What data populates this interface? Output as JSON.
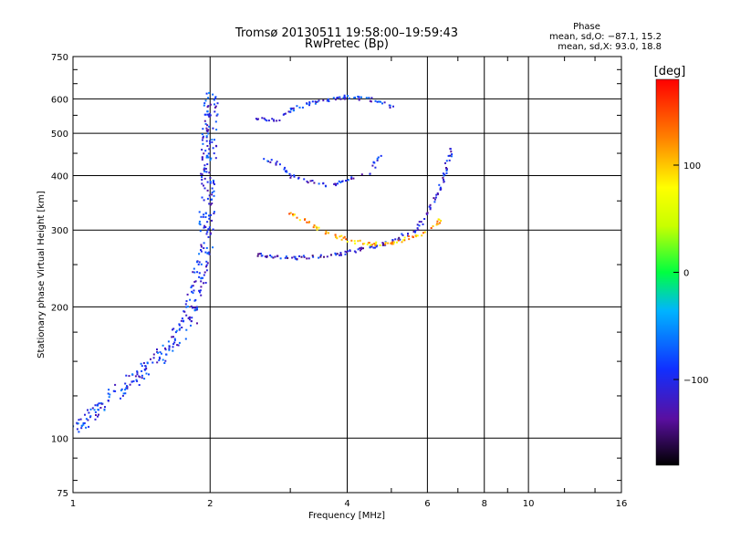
{
  "chart_data": {
    "type": "scatter",
    "title": "Tromsø 20130511 19:58:00–19:59:43",
    "subtitle": "RwPretec (Bp)",
    "xlabel": "Frequency [MHz]",
    "ylabel": "Stationary phase Virtual Height [km]",
    "x_scale": "log",
    "y_scale": "log",
    "xlim": [
      1,
      16
    ],
    "ylim": [
      75,
      750
    ],
    "x_ticks": [
      "1",
      "2",
      "4",
      "6",
      "8",
      "10",
      "16"
    ],
    "y_ticks": [
      "75",
      "100",
      "200",
      "300",
      "400",
      "500",
      "600",
      "750"
    ],
    "grid": true,
    "stats": {
      "heading": "Phase",
      "o_line": "mean, sd,O:  −87.1, 15.2",
      "x_line": "mean, sd,X:  93.0, 18.8"
    },
    "colorbar": {
      "label": "[deg]",
      "ticks": [
        "100",
        "0",
        "−100"
      ],
      "tick_values": [
        100,
        0,
        -100
      ],
      "range": [
        -180,
        180
      ]
    },
    "traces": [
      {
        "desc": "dense F-region O-mode echoes (ascending)",
        "freq_mhz": [
          1.0,
          1.2,
          1.4,
          1.6,
          1.8,
          1.95,
          2.0
        ],
        "height_km": [
          105,
          125,
          140,
          160,
          190,
          280,
          620
        ],
        "phase_deg": -95
      },
      {
        "desc": "ionogram arc (O-mode)",
        "freq_mhz": [
          2.5,
          3.0,
          3.5,
          4.0,
          4.5,
          5.0,
          5.6,
          6.0,
          6.4,
          6.8
        ],
        "height_km": [
          265,
          260,
          262,
          268,
          275,
          285,
          300,
          330,
          380,
          470
        ],
        "phase_deg": -110
      },
      {
        "desc": "upper arc (X-mode)",
        "freq_mhz": [
          3.0,
          3.5,
          4.0,
          4.5,
          5.0,
          5.5,
          6.0,
          6.4
        ],
        "height_km": [
          330,
          300,
          285,
          280,
          282,
          290,
          300,
          320
        ],
        "phase_deg": 110
      },
      {
        "desc": "multiple echoes near 550-600 km",
        "freq_mhz": [
          2.5,
          2.8,
          3.0,
          3.3,
          3.6,
          4.0,
          4.5,
          5.0
        ],
        "height_km": [
          545,
          540,
          570,
          590,
          600,
          610,
          600,
          580
        ],
        "phase_deg": -95
      },
      {
        "desc": "mid-height band 380-460 km",
        "freq_mhz": [
          2.6,
          2.8,
          3.0,
          3.3,
          3.6,
          4.5,
          4.7
        ],
        "height_km": [
          440,
          430,
          400,
          390,
          380,
          410,
          450
        ],
        "phase_deg": -100
      }
    ]
  }
}
